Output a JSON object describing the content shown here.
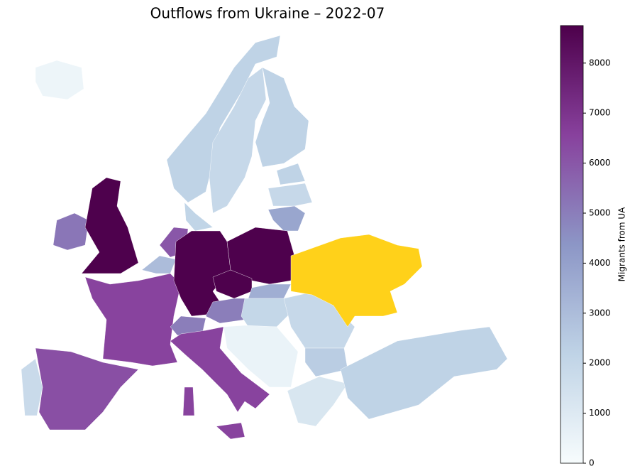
{
  "chart_data": {
    "type": "choropleth",
    "title": "Outflows from Ukraine – 2022-07",
    "colorbar_label": "Migrants from UA",
    "colormap": [
      "#f7fcfd",
      "#bfd3e6",
      "#8c96c6",
      "#88419d",
      "#4d004b"
    ],
    "ylim": [
      0,
      8750
    ],
    "yticks": [
      0,
      1000,
      2000,
      3000,
      4000,
      5000,
      6000,
      7000,
      8000
    ],
    "highlight_color": "#ffd11a",
    "values": [
      400,
      5200,
      8700,
      2200,
      1900,
      2200,
      2100,
      2200,
      1900,
      3800,
      6000,
      3000,
      6500,
      8700,
      8700,
      8700,
      3500,
      5000,
      5000,
      2000,
      1900,
      6500,
      6500,
      6500,
      6200,
      1800,
      500,
      2400,
      1200,
      2200
    ]
  }
}
